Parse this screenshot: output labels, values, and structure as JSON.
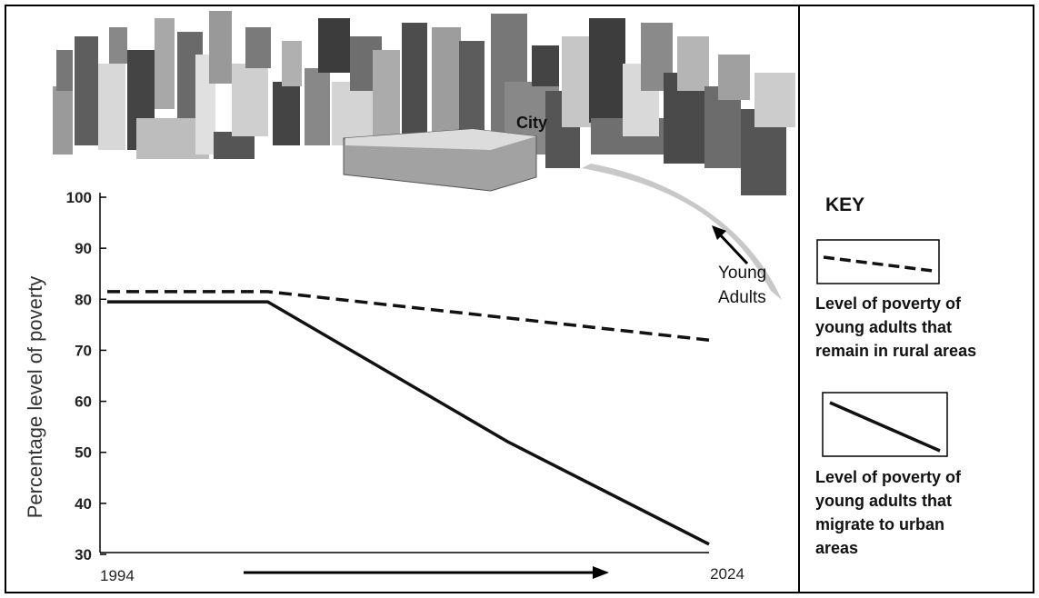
{
  "chart_data": {
    "type": "line",
    "title": "",
    "xlabel": "",
    "ylabel": "Percentage level of poverty",
    "x_ticks": [
      "1994",
      "2024"
    ],
    "y_ticks": [
      100,
      90,
      80,
      70,
      60,
      50,
      40,
      30
    ],
    "ylim": [
      30,
      100
    ],
    "x": [
      1994,
      2002,
      2014,
      2024
    ],
    "series": [
      {
        "name": "Level of poverty of young adults that remain in rural areas",
        "style": "dashed",
        "x": [
          1994,
          2002,
          2024
        ],
        "values": [
          81.5,
          81.5,
          72
        ]
      },
      {
        "name": "Level of poverty of young adults that migrate to urban areas",
        "style": "solid",
        "x": [
          1994,
          2002,
          2014,
          2024
        ],
        "values": [
          79.5,
          79.5,
          52,
          32
        ]
      }
    ],
    "grid": false,
    "legend_position": "right"
  },
  "illustration": {
    "city_label": "City",
    "arrow_label_line1": "Young",
    "arrow_label_line2": "Adults"
  },
  "key": {
    "title": "KEY",
    "dashed_label_lines": [
      "Level of poverty of",
      "young adults that",
      "remain in rural areas"
    ],
    "solid_label_lines": [
      "Level of poverty of",
      "young adults that",
      "migrate to urban",
      "areas"
    ]
  },
  "colors": {
    "line": "#111111",
    "frame": "#000000",
    "flow_band": "#c8c8c8"
  }
}
